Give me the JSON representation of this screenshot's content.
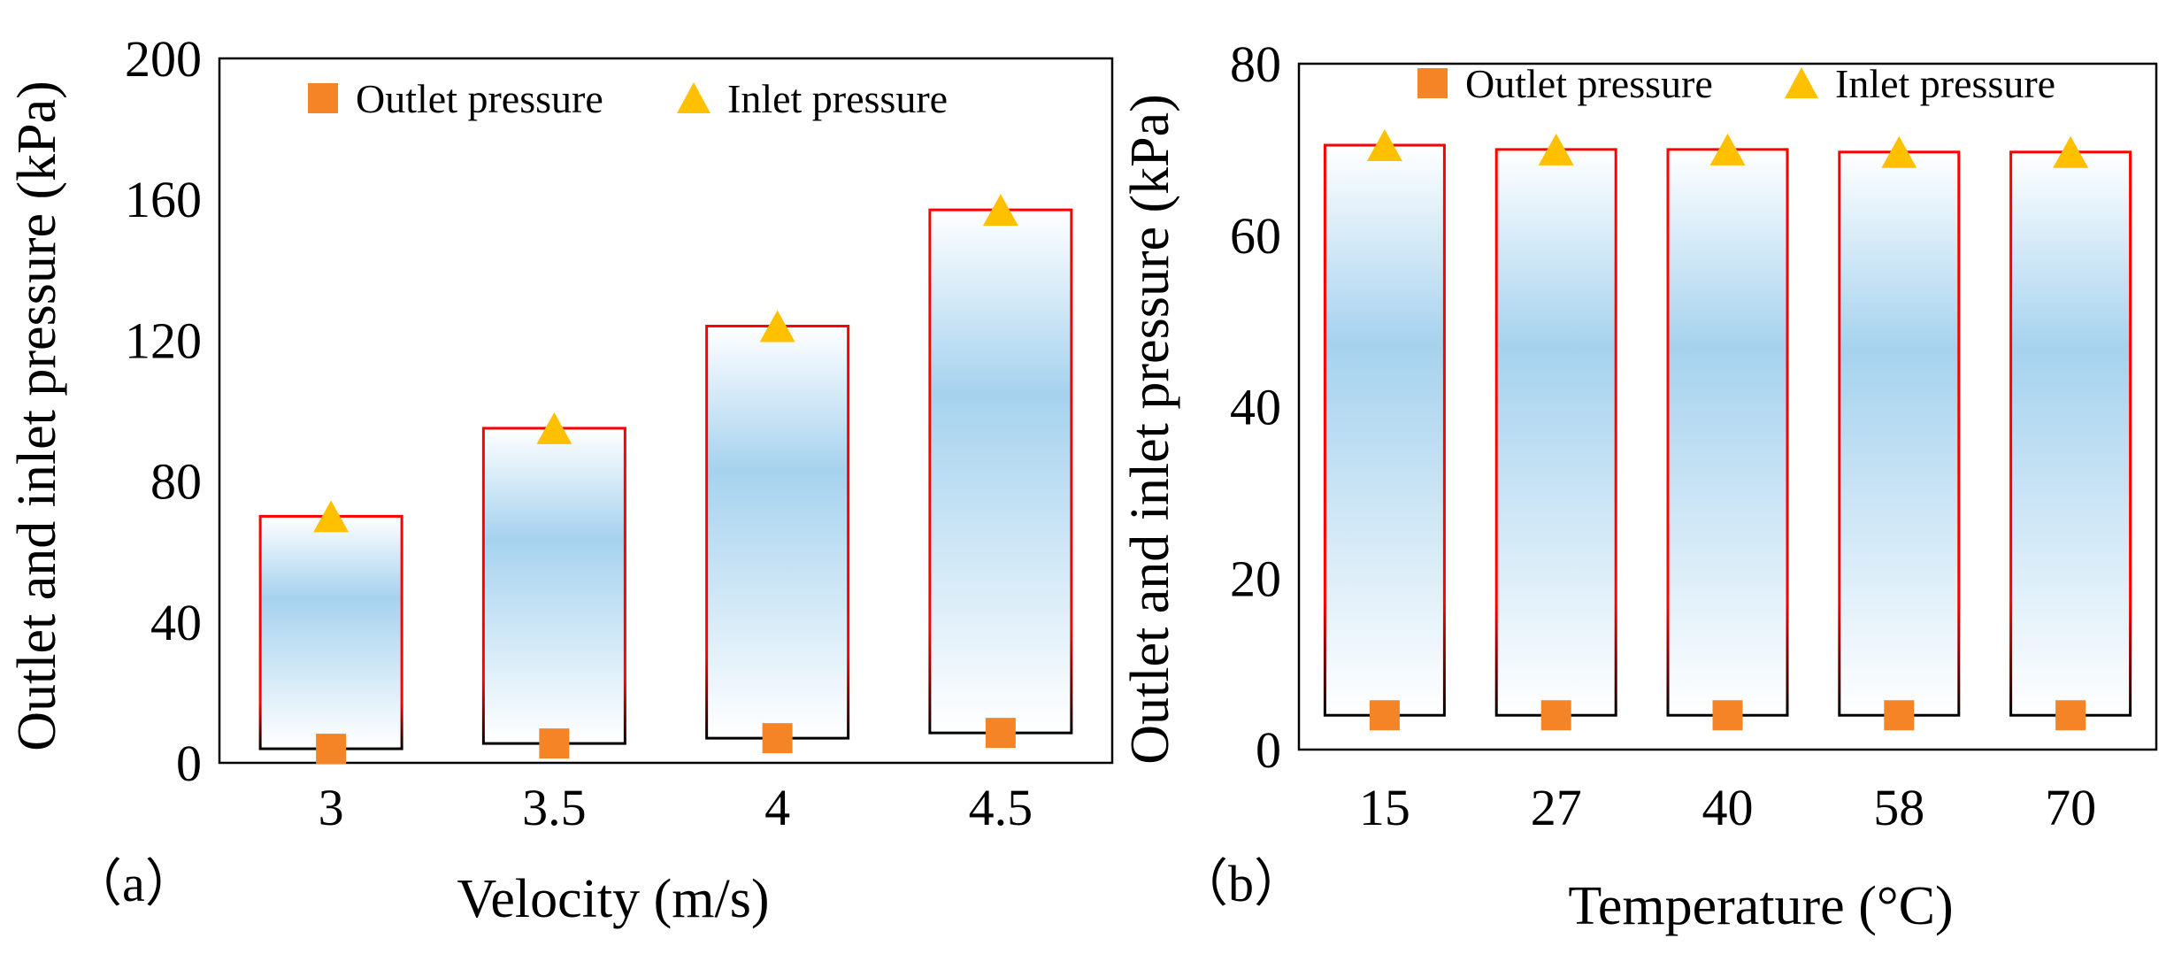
{
  "colors": {
    "outlet": "#f58426",
    "inlet": "#ffc000",
    "bar_edge_top": "#ff0000",
    "bar_edge_bottom": "#000000",
    "bar_fill_mid": "#a6d2ee",
    "bar_fill_light": "#ffffff"
  },
  "chart_data": [
    {
      "panel_label": "（a）",
      "type": "bar",
      "description_of_bars": "floating range bars from outlet pressure to inlet pressure",
      "xlabel": "Velocity (m/s)",
      "ylabel": "Outlet and inlet pressure (kPa)",
      "categories": [
        "3",
        "3.5",
        "4",
        "4.5"
      ],
      "ylim": [
        0,
        200
      ],
      "yticks": [
        "0",
        "40",
        "80",
        "120",
        "160",
        "200"
      ],
      "grid": false,
      "legend_position": "top",
      "series": [
        {
          "name": "Outlet pressure",
          "marker": "square",
          "values": [
            4,
            5.5,
            7,
            8.5
          ]
        },
        {
          "name": "Inlet pressure",
          "marker": "triangle",
          "values": [
            70,
            95,
            124,
            157
          ]
        }
      ]
    },
    {
      "panel_label": "（b）",
      "type": "bar",
      "description_of_bars": "floating range bars from outlet pressure to inlet pressure",
      "xlabel": "Temperature (°C)",
      "ylabel": "Outlet and inlet pressure (kPa)",
      "categories": [
        "15",
        "27",
        "40",
        "58",
        "70"
      ],
      "ylim": [
        0,
        80
      ],
      "yticks": [
        "0",
        "20",
        "40",
        "60",
        "80"
      ],
      "grid": false,
      "legend_position": "top",
      "series": [
        {
          "name": "Outlet pressure",
          "marker": "square",
          "values": [
            4,
            4,
            4,
            4,
            4
          ]
        },
        {
          "name": "Inlet pressure",
          "marker": "triangle",
          "values": [
            70.5,
            70,
            70,
            69.7,
            69.7
          ]
        }
      ]
    }
  ]
}
